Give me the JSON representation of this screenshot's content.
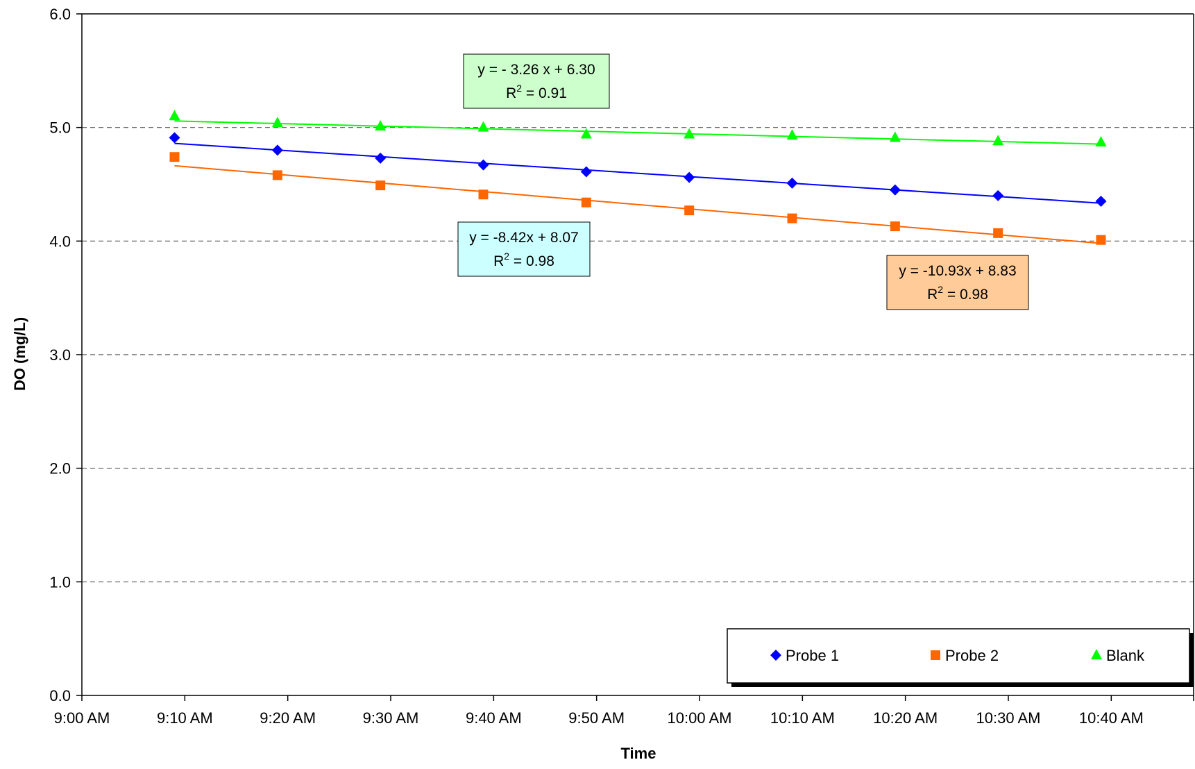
{
  "chart_data": {
    "type": "line",
    "title": "",
    "xlabel": "Time",
    "ylabel": "DO (mg/L)",
    "x_tick_labels": [
      "9:00 AM",
      "9:10 AM",
      "9:20 AM",
      "9:30 AM",
      "9:40 AM",
      "9:50 AM",
      "10:00 AM",
      "10:10 AM",
      "10:20 AM",
      "10:30 AM",
      "10:40 AM"
    ],
    "y_tick_labels": [
      "0.0",
      "1.0",
      "2.0",
      "3.0",
      "4.0",
      "5.0",
      "6.0"
    ],
    "x_unit": "time of day",
    "xlim": [
      "9:00 AM",
      "10:48 AM"
    ],
    "ylim": [
      0,
      6
    ],
    "grid": "horizontal dashed",
    "legend_position": "bottom-right",
    "x": [
      "9:09 AM",
      "9:19 AM",
      "9:29 AM",
      "9:39 AM",
      "9:49 AM",
      "9:59 AM",
      "10:09 AM",
      "10:19 AM",
      "10:29 AM",
      "10:39 AM"
    ],
    "series": [
      {
        "name": "Probe 1",
        "color": "#0000FF",
        "marker": "diamond",
        "values": [
          4.91,
          4.8,
          4.73,
          4.67,
          4.61,
          4.56,
          4.51,
          4.45,
          4.4,
          4.35
        ],
        "trendline": {
          "slope": -8.42,
          "intercept": 8.07,
          "equation": "y = -8.42x + 8.07",
          "r2_label": "R",
          "r2_sup": "2",
          "r2_value": " = 0.98",
          "box_color": "#CCFFFF"
        }
      },
      {
        "name": "Probe 2",
        "color": "#FF6600",
        "marker": "square",
        "values": [
          4.74,
          4.58,
          4.49,
          4.41,
          4.34,
          4.27,
          4.2,
          4.13,
          4.07,
          4.01
        ],
        "trendline": {
          "slope": -10.93,
          "intercept": 8.83,
          "equation": "y = -10.93x + 8.83",
          "r2_label": "R",
          "r2_sup": "2",
          "r2_value": " = 0.98",
          "box_color": "#FFCC99"
        }
      },
      {
        "name": "Blank",
        "color": "#00FF00",
        "marker": "triangle",
        "values": [
          5.1,
          5.04,
          5.01,
          5.0,
          4.94,
          4.94,
          4.93,
          4.91,
          4.88,
          4.87
        ],
        "trendline": {
          "slope": -3.26,
          "intercept": 6.3,
          "equation": "y = - 3.26 x +  6.30",
          "r2_label": "R",
          "r2_sup": "2",
          "r2_value": " =  0.91",
          "box_color": "#CCFFCC"
        }
      }
    ]
  }
}
